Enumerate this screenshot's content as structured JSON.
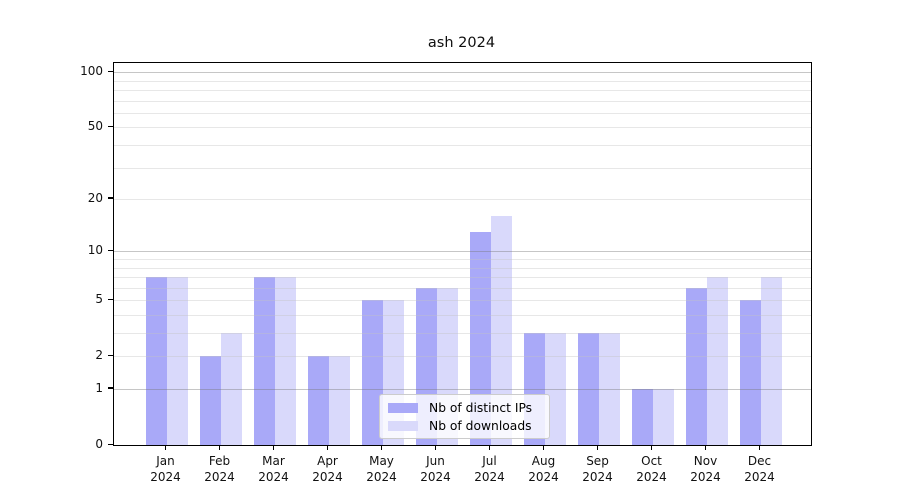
{
  "title": "ash 2024",
  "chart_data": {
    "type": "bar",
    "title": "ash 2024",
    "categories": [
      "Jan",
      "Feb",
      "Mar",
      "Apr",
      "May",
      "Jun",
      "Jul",
      "Aug",
      "Sep",
      "Oct",
      "Nov",
      "Dec"
    ],
    "category_year": "2024",
    "series": [
      {
        "name": "Nb of distinct IPs",
        "color": "#a9a9f8",
        "values": [
          7,
          2,
          7,
          2,
          5,
          6,
          13,
          3,
          3,
          1,
          6,
          5
        ]
      },
      {
        "name": "Nb of downloads",
        "color": "#d9d9fb",
        "values": [
          7,
          3,
          7,
          2,
          5,
          6,
          16,
          3,
          3,
          1,
          7,
          7
        ]
      }
    ],
    "xlabel": "",
    "ylabel": "",
    "yscale": "log1p",
    "ylim": [
      0,
      112
    ],
    "yticks": [
      0,
      1,
      2,
      5,
      10,
      20,
      50,
      100
    ],
    "major_gridlines": [
      1,
      10,
      100
    ],
    "minor_gridline_decades": [
      1,
      10
    ],
    "grid": true,
    "legend_position": "inside-bottom-center",
    "colors": {
      "axis": "#000000",
      "major_grid": "#c2c2c2",
      "minor_grid": "#ebebeb",
      "background": "#ffffff",
      "text": "#111111"
    }
  }
}
